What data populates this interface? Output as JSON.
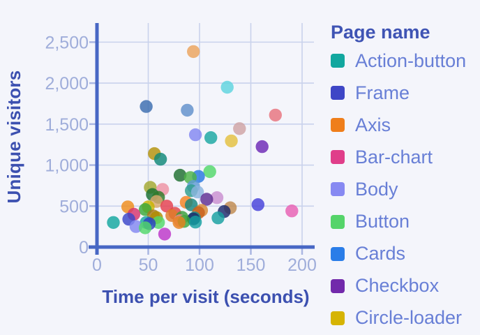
{
  "chart_data": {
    "type": "scatter",
    "xlabel": "Time per visit (seconds)",
    "ylabel": "Unique visitors",
    "legend_title": "Page name",
    "xlim": [
      0,
      210
    ],
    "ylim": [
      0,
      2715
    ],
    "grid": true,
    "legend_position": "right",
    "x_ticks": [
      {
        "value": 0,
        "label": "0"
      },
      {
        "value": 50,
        "label": "50"
      },
      {
        "value": 100,
        "label": "100"
      },
      {
        "value": 150,
        "label": "150"
      },
      {
        "value": 200,
        "label": "200"
      }
    ],
    "y_ticks": [
      {
        "value": 0,
        "label": "0"
      },
      {
        "value": 500,
        "label": "500"
      },
      {
        "value": 1000,
        "label": "1,000"
      },
      {
        "value": 1500,
        "label": "1,500"
      },
      {
        "value": 2000,
        "label": "2,000"
      },
      {
        "value": 2500,
        "label": "2,500"
      }
    ],
    "series": [
      {
        "name": "Action-button",
        "color": "#12a79f"
      },
      {
        "name": "Frame",
        "color": "#3e46c6"
      },
      {
        "name": "Axis",
        "color": "#ef7e1b"
      },
      {
        "name": "Bar-chart",
        "color": "#e03e8a"
      },
      {
        "name": "Body",
        "color": "#8789f2"
      },
      {
        "name": "Button",
        "color": "#55d46a"
      },
      {
        "name": "Cards",
        "color": "#2a7de8"
      },
      {
        "name": "Checkbox",
        "color": "#7229ab"
      },
      {
        "name": "Circle-loader",
        "color": "#d6b403"
      }
    ],
    "points": [
      {
        "x": 94,
        "y": 2385,
        "color": "#eba45b"
      },
      {
        "x": 127,
        "y": 1950,
        "color": "#5ed4de"
      },
      {
        "x": 48,
        "y": 1715,
        "color": "#3a6cae"
      },
      {
        "x": 88,
        "y": 1670,
        "color": "#6090cb"
      },
      {
        "x": 174,
        "y": 1610,
        "color": "#e8737d"
      },
      {
        "x": 139,
        "y": 1445,
        "color": "#cfa3a3"
      },
      {
        "x": 96,
        "y": 1370,
        "color": "#8387f0"
      },
      {
        "x": 111,
        "y": 1335,
        "color": "#1aa7a1"
      },
      {
        "x": 131,
        "y": 1295,
        "color": "#e4c13e"
      },
      {
        "x": 161,
        "y": 1225,
        "color": "#6d28b5"
      },
      {
        "x": 56,
        "y": 1140,
        "color": "#b39308"
      },
      {
        "x": 62,
        "y": 1072,
        "color": "#0f8777"
      },
      {
        "x": 110,
        "y": 920,
        "color": "#52d869"
      },
      {
        "x": 81,
        "y": 876,
        "color": "#1e6f2e"
      },
      {
        "x": 99,
        "y": 862,
        "color": "#2778e0"
      },
      {
        "x": 91,
        "y": 848,
        "color": "#4db347"
      },
      {
        "x": 94,
        "y": 740,
        "color": "#5e9bd4"
      },
      {
        "x": 52,
        "y": 728,
        "color": "#a3a82e"
      },
      {
        "x": 64,
        "y": 703,
        "color": "#ee93a2"
      },
      {
        "x": 92,
        "y": 688,
        "color": "#2e9e8e"
      },
      {
        "x": 98,
        "y": 672,
        "color": "#8ab4de"
      },
      {
        "x": 54,
        "y": 641,
        "color": "#1a7030"
      },
      {
        "x": 60,
        "y": 607,
        "color": "#2e7a28"
      },
      {
        "x": 117,
        "y": 603,
        "color": "#c98fd0"
      },
      {
        "x": 107,
        "y": 583,
        "color": "#5e2d91"
      },
      {
        "x": 58,
        "y": 556,
        "color": "#d9aa6e"
      },
      {
        "x": 87,
        "y": 546,
        "color": "#f58220"
      },
      {
        "x": 157,
        "y": 518,
        "color": "#4641d9"
      },
      {
        "x": 92,
        "y": 514,
        "color": "#17867e"
      },
      {
        "x": 68,
        "y": 500,
        "color": "#e5404d"
      },
      {
        "x": 50,
        "y": 490,
        "color": "#c8b400"
      },
      {
        "x": 30,
        "y": 490,
        "color": "#ef8c1a"
      },
      {
        "x": 130,
        "y": 479,
        "color": "#c08a4e"
      },
      {
        "x": 47,
        "y": 458,
        "color": "#3aa83a"
      },
      {
        "x": 102,
        "y": 447,
        "color": "#d98a32"
      },
      {
        "x": 190,
        "y": 441,
        "color": "#e85fb2"
      },
      {
        "x": 124,
        "y": 433,
        "color": "#1b2a6b"
      },
      {
        "x": 99,
        "y": 420,
        "color": "#c8601d"
      },
      {
        "x": 76,
        "y": 412,
        "color": "#e04545"
      },
      {
        "x": 36,
        "y": 400,
        "color": "#d6336c"
      },
      {
        "x": 73,
        "y": 385,
        "color": "#e07b28"
      },
      {
        "x": 55,
        "y": 380,
        "color": "#a8791f"
      },
      {
        "x": 83,
        "y": 362,
        "color": "#3b9e3b"
      },
      {
        "x": 58,
        "y": 360,
        "color": "#b08c00"
      },
      {
        "x": 95,
        "y": 356,
        "color": "#0f8f8f"
      },
      {
        "x": 118,
        "y": 356,
        "color": "#16a0a0"
      },
      {
        "x": 94,
        "y": 342,
        "color": "#1b2a6b"
      },
      {
        "x": 31,
        "y": 340,
        "color": "#3b45c8"
      },
      {
        "x": 81,
        "y": 322,
        "color": "#ea8a94"
      },
      {
        "x": 85,
        "y": 313,
        "color": "#3aa83a"
      },
      {
        "x": 96,
        "y": 305,
        "color": "#14a0a0"
      },
      {
        "x": 16,
        "y": 300,
        "color": "#12a79f"
      },
      {
        "x": 48,
        "y": 300,
        "color": "#1aa7a1"
      },
      {
        "x": 60,
        "y": 300,
        "color": "#52d869"
      },
      {
        "x": 80,
        "y": 300,
        "color": "#e8821e"
      },
      {
        "x": 51,
        "y": 285,
        "color": "#2d3fc0"
      },
      {
        "x": 38,
        "y": 250,
        "color": "#8387f0"
      },
      {
        "x": 47,
        "y": 235,
        "color": "#52d869"
      },
      {
        "x": 66,
        "y": 158,
        "color": "#bd36c8"
      }
    ]
  },
  "colors": {
    "background": "#f4f5fb",
    "axis": "#4767c4",
    "grid": "#c9d2ec",
    "tick": "#aab6e2",
    "tick_label": "#9fadda",
    "axis_title": "#3c50b0",
    "legend_title": "#3f54b4",
    "legend_label": "#687fd6"
  }
}
